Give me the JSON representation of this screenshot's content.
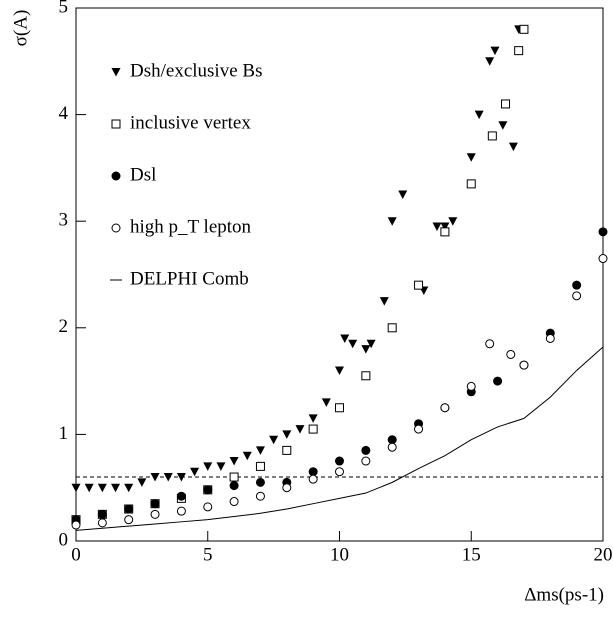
{
  "chart_data": {
    "type": "scatter",
    "xlabel": "Δms(ps-1)",
    "ylabel": "σ(A)",
    "xlim": [
      0,
      20
    ],
    "ylim": [
      0,
      5
    ],
    "xticks": [
      0,
      5,
      10,
      15,
      20
    ],
    "yticks": [
      0,
      1,
      2,
      3,
      4,
      5
    ],
    "reference_line": 0.6,
    "legend": "upper-left",
    "series": [
      {
        "name": "Dsh/exclusive Bs",
        "marker": "triangle-down",
        "color": "#000000",
        "x": [
          0,
          0.5,
          1,
          1.5,
          2,
          2.5,
          3,
          3.5,
          4,
          4.5,
          5,
          5.5,
          6,
          6.5,
          7,
          7.5,
          8,
          8.5,
          9,
          9.5,
          10,
          10.2,
          10.5,
          11,
          11.2,
          11.7,
          12,
          12.4,
          13.2,
          13.7,
          14,
          14.3,
          15,
          15.3,
          15.7,
          15.9,
          16.2,
          16.6,
          16.8
        ],
        "values": [
          0.5,
          0.5,
          0.5,
          0.5,
          0.5,
          0.55,
          0.6,
          0.6,
          0.6,
          0.65,
          0.7,
          0.7,
          0.75,
          0.8,
          0.85,
          0.95,
          1.0,
          1.05,
          1.15,
          1.3,
          1.6,
          1.9,
          1.85,
          1.8,
          1.85,
          2.25,
          3.0,
          3.25,
          2.35,
          2.95,
          2.95,
          3.0,
          3.6,
          4.0,
          4.5,
          4.6,
          3.9,
          3.7,
          4.8
        ]
      },
      {
        "name": "inclusive vertex",
        "marker": "square-open",
        "color": "#000000",
        "x": [
          0,
          1,
          2,
          3,
          4,
          5,
          6,
          7,
          8,
          9,
          10,
          11,
          12,
          13,
          14,
          15,
          15.8,
          16.3,
          16.8,
          17
        ],
        "values": [
          0.2,
          0.25,
          0.3,
          0.35,
          0.4,
          0.48,
          0.6,
          0.7,
          0.85,
          1.05,
          1.25,
          1.55,
          2.0,
          2.4,
          2.9,
          3.35,
          3.8,
          4.1,
          4.6,
          4.8
        ]
      },
      {
        "name": "Dsl",
        "marker": "circle",
        "color": "#000000",
        "x": [
          0,
          1,
          2,
          3,
          4,
          5,
          6,
          7,
          8,
          9,
          10,
          11,
          12,
          13,
          14,
          15,
          16,
          17,
          18,
          19,
          20
        ],
        "values": [
          0.2,
          0.25,
          0.3,
          0.35,
          0.42,
          0.48,
          0.52,
          0.55,
          0.55,
          0.65,
          0.75,
          0.85,
          0.95,
          1.1,
          1.25,
          1.4,
          1.5,
          1.65,
          1.95,
          2.4,
          2.9
        ]
      },
      {
        "name": "high p_T lepton",
        "marker": "circle-open",
        "color": "#000000",
        "x": [
          0,
          1,
          2,
          3,
          4,
          5,
          6,
          7,
          8,
          9,
          10,
          11,
          12,
          13,
          14,
          15,
          15.7,
          16.5,
          17,
          18,
          19,
          20
        ],
        "values": [
          0.15,
          0.17,
          0.2,
          0.25,
          0.28,
          0.32,
          0.37,
          0.42,
          0.5,
          0.58,
          0.65,
          0.75,
          0.88,
          1.05,
          1.25,
          1.45,
          1.85,
          1.75,
          1.65,
          1.9,
          2.3,
          2.65
        ]
      },
      {
        "name": "DELPHI Comb",
        "marker": "line",
        "color": "#000000",
        "x": [
          0,
          1,
          2,
          3,
          4,
          5,
          6,
          7,
          8,
          9,
          10,
          11,
          12,
          13,
          14,
          15,
          16,
          17,
          18,
          19,
          20
        ],
        "values": [
          0.1,
          0.12,
          0.14,
          0.16,
          0.18,
          0.2,
          0.23,
          0.26,
          0.3,
          0.35,
          0.4,
          0.45,
          0.55,
          0.68,
          0.8,
          0.95,
          1.07,
          1.15,
          1.35,
          1.6,
          1.82
        ]
      }
    ]
  }
}
